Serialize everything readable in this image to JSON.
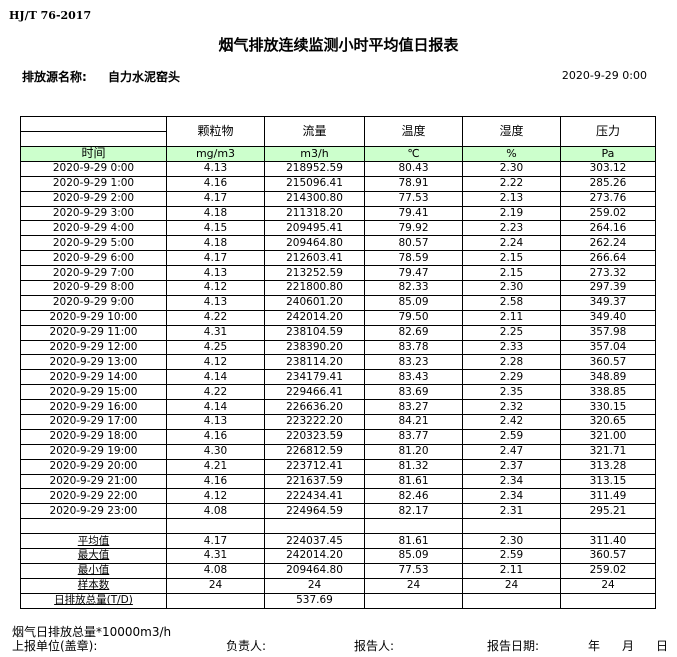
{
  "standard": "HJ/T  76-2017",
  "title": "烟气排放连续监测小时平均值日报表",
  "source_label": "排放源名称:",
  "source_value": "自力水泥窑头",
  "report_datetime": "2020-9-29 0:00",
  "columns": [
    {
      "name": "时间",
      "unit": ""
    },
    {
      "name": "颗粒物",
      "unit": "mg/m3"
    },
    {
      "name": "流量",
      "unit": "m3/h"
    },
    {
      "name": "温度",
      "unit": "℃"
    },
    {
      "name": "湿度",
      "unit": "%"
    },
    {
      "name": "压力",
      "unit": "Pa"
    }
  ],
  "rows": [
    [
      "2020-9-29 0:00",
      "4.13",
      "218952.59",
      "80.43",
      "2.30",
      "303.12"
    ],
    [
      "2020-9-29 1:00",
      "4.16",
      "215096.41",
      "78.91",
      "2.22",
      "285.26"
    ],
    [
      "2020-9-29 2:00",
      "4.17",
      "214300.80",
      "77.53",
      "2.13",
      "273.76"
    ],
    [
      "2020-9-29 3:00",
      "4.18",
      "211318.20",
      "79.41",
      "2.19",
      "259.02"
    ],
    [
      "2020-9-29 4:00",
      "4.15",
      "209495.41",
      "79.92",
      "2.23",
      "264.16"
    ],
    [
      "2020-9-29 5:00",
      "4.18",
      "209464.80",
      "80.57",
      "2.24",
      "262.24"
    ],
    [
      "2020-9-29 6:00",
      "4.17",
      "212603.41",
      "78.59",
      "2.15",
      "266.64"
    ],
    [
      "2020-9-29 7:00",
      "4.13",
      "213252.59",
      "79.47",
      "2.15",
      "273.32"
    ],
    [
      "2020-9-29 8:00",
      "4.12",
      "221800.80",
      "82.33",
      "2.30",
      "297.39"
    ],
    [
      "2020-9-29 9:00",
      "4.13",
      "240601.20",
      "85.09",
      "2.58",
      "349.37"
    ],
    [
      "2020-9-29 10:00",
      "4.22",
      "242014.20",
      "79.50",
      "2.11",
      "349.40"
    ],
    [
      "2020-9-29 11:00",
      "4.31",
      "238104.59",
      "82.69",
      "2.25",
      "357.98"
    ],
    [
      "2020-9-29 12:00",
      "4.25",
      "238390.20",
      "83.78",
      "2.33",
      "357.04"
    ],
    [
      "2020-9-29 13:00",
      "4.12",
      "238114.20",
      "83.23",
      "2.28",
      "360.57"
    ],
    [
      "2020-9-29 14:00",
      "4.14",
      "234179.41",
      "83.43",
      "2.29",
      "348.89"
    ],
    [
      "2020-9-29 15:00",
      "4.22",
      "229466.41",
      "83.69",
      "2.35",
      "338.85"
    ],
    [
      "2020-9-29 16:00",
      "4.14",
      "226636.20",
      "83.27",
      "2.32",
      "330.15"
    ],
    [
      "2020-9-29 17:00",
      "4.13",
      "223222.20",
      "84.21",
      "2.42",
      "320.65"
    ],
    [
      "2020-9-29 18:00",
      "4.16",
      "220323.59",
      "83.77",
      "2.59",
      "321.00"
    ],
    [
      "2020-9-29 19:00",
      "4.30",
      "226812.59",
      "81.20",
      "2.47",
      "321.71"
    ],
    [
      "2020-9-29 20:00",
      "4.21",
      "223712.41",
      "81.32",
      "2.37",
      "313.28"
    ],
    [
      "2020-9-29 21:00",
      "4.16",
      "221637.59",
      "81.61",
      "2.34",
      "313.15"
    ],
    [
      "2020-9-29 22:00",
      "4.12",
      "222434.41",
      "82.46",
      "2.34",
      "311.49"
    ],
    [
      "2020-9-29 23:00",
      "4.08",
      "224964.59",
      "82.17",
      "2.31",
      "295.21"
    ]
  ],
  "summary": [
    [
      "平均值",
      "4.17",
      "224037.45",
      "81.61",
      "2.30",
      "311.40"
    ],
    [
      "最大值",
      "4.31",
      "242014.20",
      "85.09",
      "2.59",
      "360.57"
    ],
    [
      "最小值",
      "4.08",
      "209464.80",
      "77.53",
      "2.11",
      "259.02"
    ],
    [
      "样本数",
      "24",
      "24",
      "24",
      "24",
      "24"
    ],
    [
      "日排放总量(T/D)",
      "",
      "537.69",
      "",
      "",
      ""
    ]
  ],
  "footer": {
    "note": "烟气日排放总量*10000m3/h",
    "unit_label": "上报单位(盖章):",
    "responsible_label": "负责人:",
    "reporter_label": "报告人:",
    "date_label": "报告日期:",
    "year": "年",
    "month": "月",
    "day": "日"
  }
}
